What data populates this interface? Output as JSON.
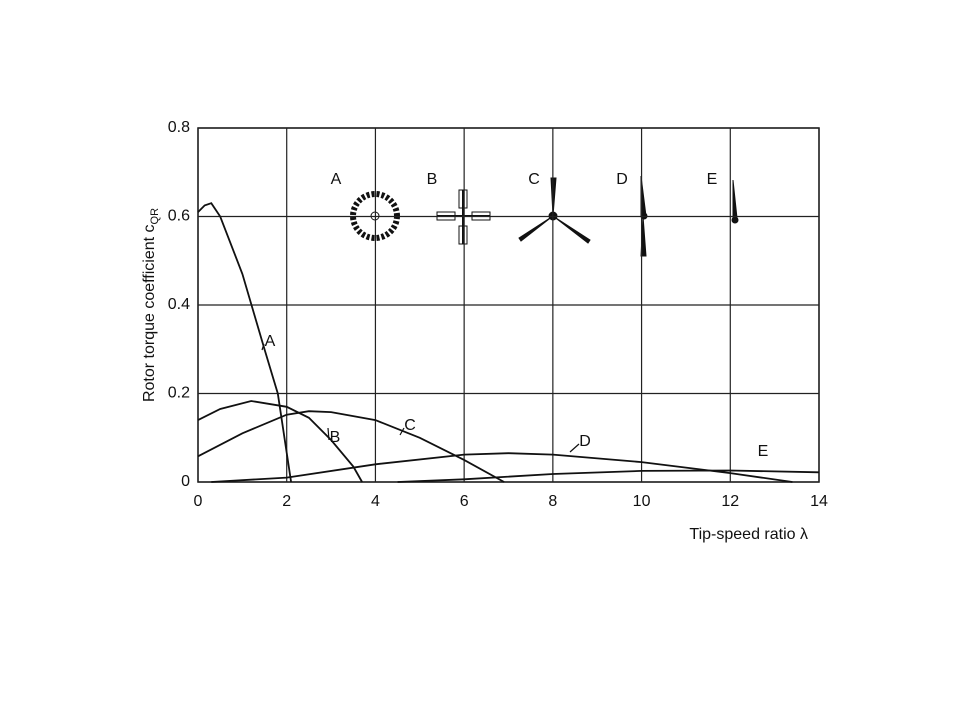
{
  "chart_data": {
    "type": "line",
    "xlabel": "Tip-speed ratio λ",
    "ylabel": {
      "text": "Rotor torque coefficient c",
      "subscript": "QR"
    },
    "xlim": [
      0,
      14
    ],
    "ylim": [
      0,
      0.8
    ],
    "xticks": [
      0,
      2,
      4,
      6,
      8,
      10,
      12,
      14
    ],
    "yticks": [
      0,
      0.2,
      0.4,
      0.6,
      0.8
    ],
    "grid": true,
    "series": [
      {
        "name": "A",
        "color": "#111111",
        "x": [
          0,
          0.15,
          0.3,
          0.5,
          1.0,
          1.5,
          1.8,
          2.1
        ],
        "values": [
          0.61,
          0.625,
          0.63,
          0.6,
          0.47,
          0.3,
          0.2,
          0
        ]
      },
      {
        "name": "B",
        "color": "#111111",
        "x": [
          0,
          0.5,
          1.2,
          2,
          2.5,
          3,
          3.5,
          3.7
        ],
        "values": [
          0.14,
          0.165,
          0.183,
          0.17,
          0.145,
          0.095,
          0.035,
          0
        ]
      },
      {
        "name": "C",
        "color": "#111111",
        "x": [
          0,
          1,
          2,
          2.5,
          3,
          4,
          5,
          6,
          6.9
        ],
        "values": [
          0.058,
          0.11,
          0.152,
          0.16,
          0.158,
          0.14,
          0.1,
          0.05,
          0
        ]
      },
      {
        "name": "D",
        "color": "#111111",
        "x": [
          0.3,
          2,
          4,
          6,
          7,
          8,
          10,
          12,
          13.4
        ],
        "values": [
          0,
          0.01,
          0.04,
          0.062,
          0.065,
          0.062,
          0.045,
          0.02,
          0
        ]
      },
      {
        "name": "E",
        "color": "#111111",
        "x": [
          4.5,
          6,
          8,
          10,
          12,
          14
        ],
        "values": [
          0,
          0.006,
          0.018,
          0.025,
          0.026,
          0.022
        ]
      }
    ]
  }
}
